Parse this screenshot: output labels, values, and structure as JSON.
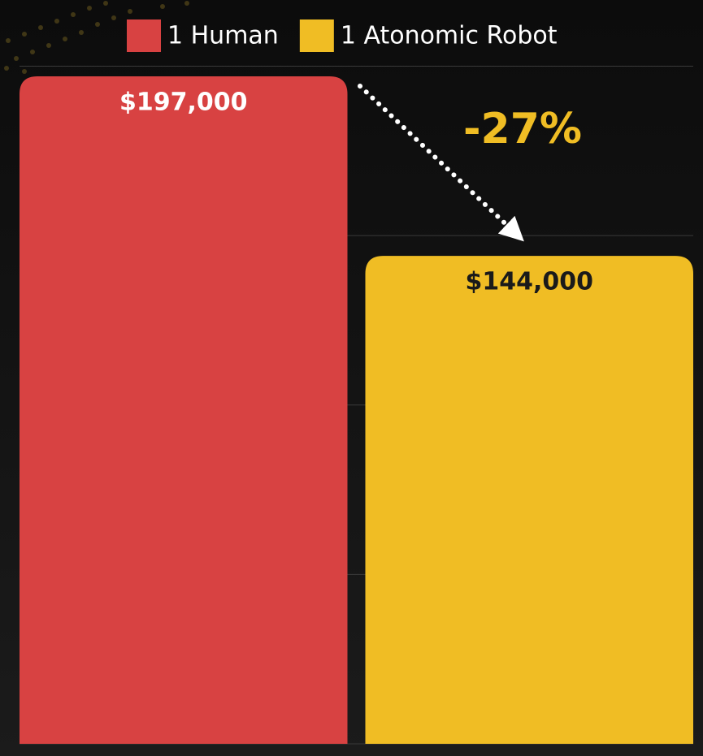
{
  "chart_data": {
    "type": "bar",
    "categories": [
      null
    ],
    "series": [
      {
        "name": "1 Human",
        "color": "#d84242",
        "values": [
          197000
        ],
        "value_labels": [
          "$197,000"
        ]
      },
      {
        "name": "1 Atonomic Robot",
        "color": "#f0bd24",
        "values": [
          144000
        ],
        "value_labels": [
          "$144,000"
        ]
      }
    ],
    "annotation": "-27%",
    "ylim": [
      0,
      200000
    ],
    "yticks": [
      0,
      50000,
      100000,
      150000,
      200000
    ],
    "grid": true
  }
}
